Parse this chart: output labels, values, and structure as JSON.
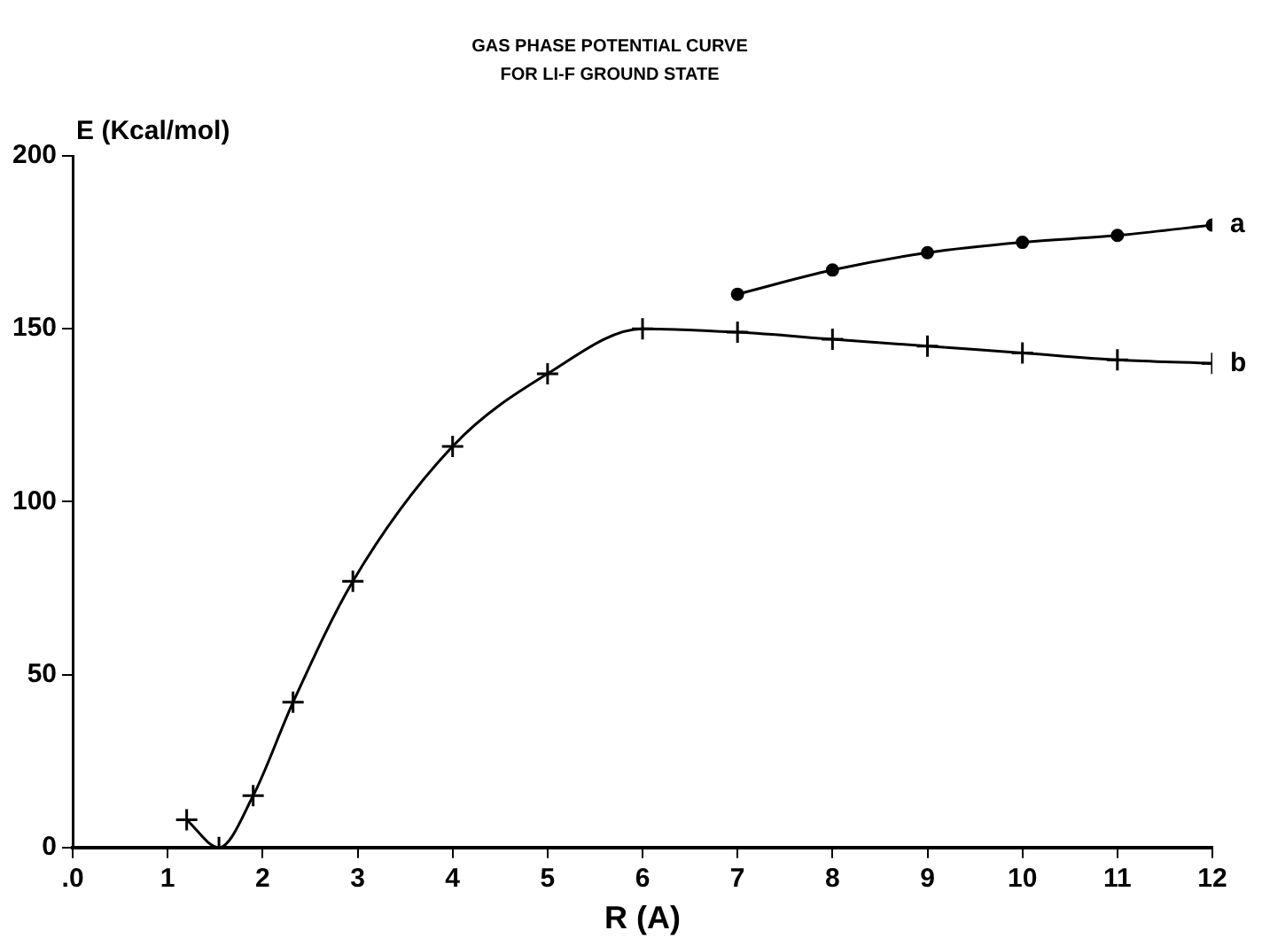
{
  "chart_data": {
    "type": "line",
    "title": "GAS PHASE POTENTIAL CURVE",
    "subtitle": "FOR LI-F GROUND STATE",
    "xlabel": "R (A)",
    "ylabel": "E (Kcal/mol)",
    "xlim": [
      0,
      12
    ],
    "xticks": [
      {
        "value": 0,
        "label": ".0"
      },
      1,
      2,
      3,
      4,
      5,
      6,
      7,
      8,
      9,
      10,
      11,
      12
    ],
    "ylim": [
      0,
      200
    ],
    "yticks": [
      0,
      50,
      100,
      150,
      200
    ],
    "grid": false,
    "legend": false,
    "series": [
      {
        "name": "a",
        "color": "#000000",
        "marker": "circle",
        "x": [
          7,
          8,
          9,
          10,
          11,
          12
        ],
        "values": [
          160,
          167,
          172,
          175,
          177,
          180
        ]
      },
      {
        "name": "b",
        "color": "#000000",
        "marker": "cross",
        "x": [
          1.2,
          1.54,
          1.9,
          2.32,
          2.95,
          4,
          5,
          6,
          7,
          8,
          9,
          10,
          11,
          12
        ],
        "values": [
          8,
          0,
          15,
          42,
          77,
          116,
          137,
          150,
          149,
          147,
          145,
          143,
          141,
          140
        ]
      }
    ]
  }
}
